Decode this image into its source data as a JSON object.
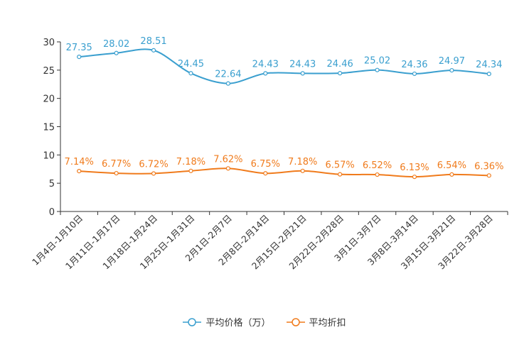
{
  "chart_data": {
    "type": "line",
    "categories": [
      "1月4日-1月10日",
      "1月11日-1月17日",
      "1月18日-1月24日",
      "1月25日-1月31日",
      "2月1日-2月7日",
      "2月8日-2月14日",
      "2月15日-2月21日",
      "2月22日-2月28日",
      "3月1日-3月7日",
      "3月8日-3月14日",
      "3月15日-3月21日",
      "3月22日-3月28日"
    ],
    "yticks": [
      "0",
      "5",
      "10",
      "15",
      "20",
      "25",
      "30"
    ],
    "ylim": [
      0,
      30
    ],
    "series": [
      {
        "name": "平均价格（万）",
        "color": "#3a9fcf",
        "values": [
          27.35,
          28.02,
          28.51,
          24.45,
          22.64,
          24.43,
          24.43,
          24.46,
          25.02,
          24.36,
          24.97,
          24.34
        ],
        "labels": [
          "27.35",
          "28.02",
          "28.51",
          "24.45",
          "22.64",
          "24.43",
          "24.43",
          "24.46",
          "25.02",
          "24.36",
          "24.97",
          "24.34"
        ]
      },
      {
        "name": "平均折扣",
        "color": "#f07b1c",
        "values": [
          7.14,
          6.77,
          6.72,
          7.18,
          7.62,
          6.75,
          7.18,
          6.57,
          6.52,
          6.13,
          6.54,
          6.36
        ],
        "labels": [
          "7.14%",
          "6.77%",
          "6.72%",
          "7.18%",
          "7.62%",
          "6.75%",
          "7.18%",
          "6.57%",
          "6.52%",
          "6.13%",
          "6.54%",
          "6.36%"
        ]
      }
    ]
  }
}
